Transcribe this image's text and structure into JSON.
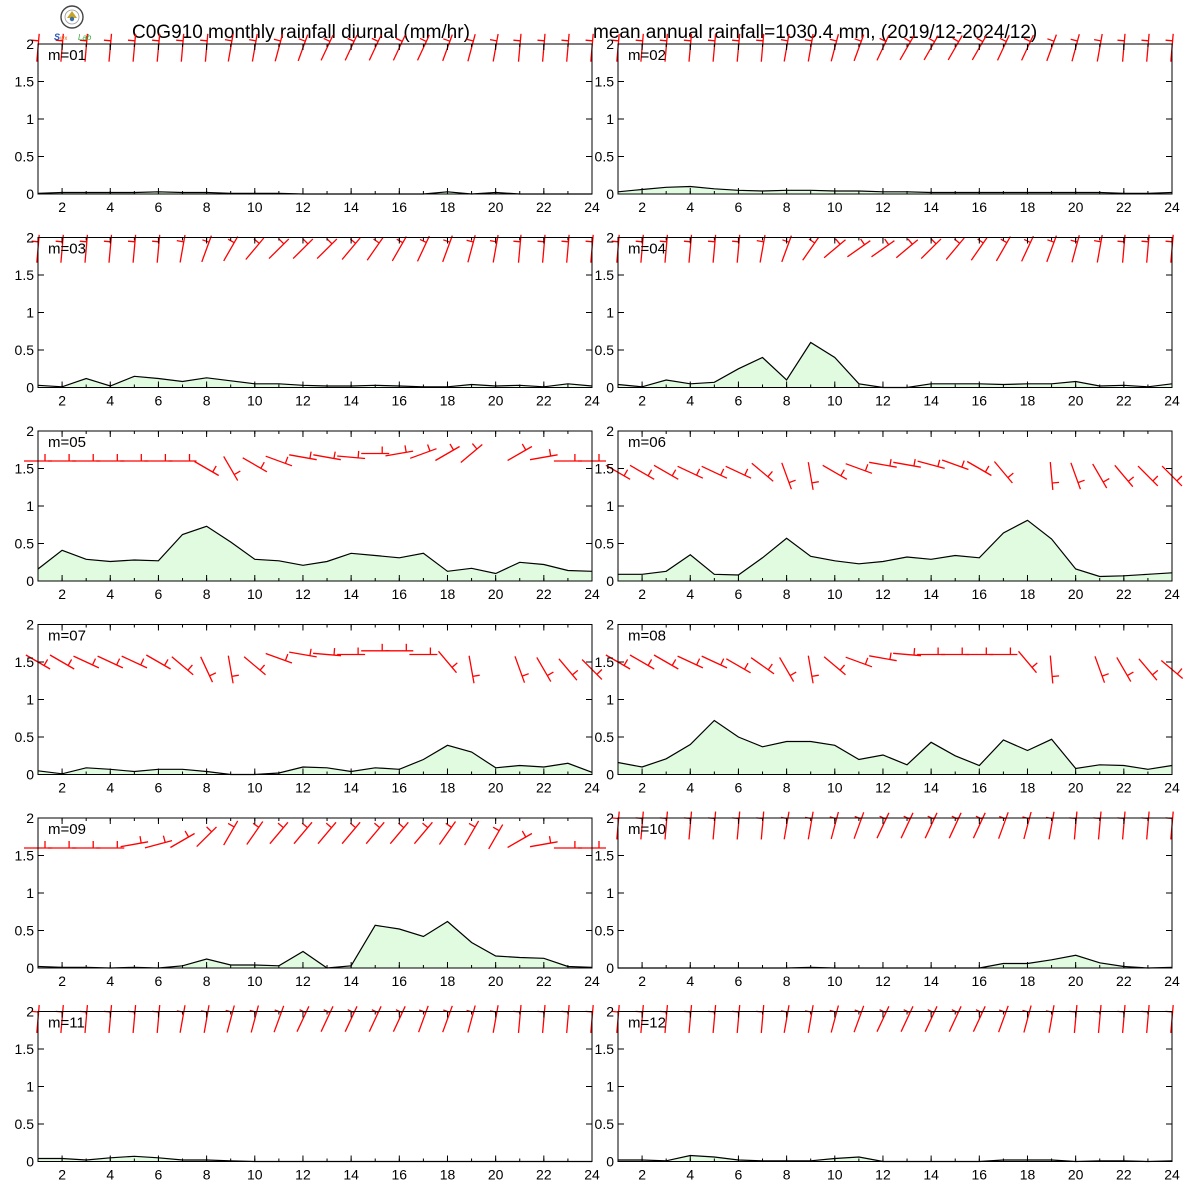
{
  "header": {
    "title_left": "C0G910 monthly rainfall diurnal (mm/hr)",
    "title_right": "mean annual rainfall=1030.4 mm, (2019/12-2024/12)",
    "logo_text": "Lab"
  },
  "colors": {
    "fill": "#e0fbe0",
    "line": "#000000",
    "barb": "#ff0000"
  },
  "chart_data": {
    "type": "area",
    "layout": "6x2 small multiples",
    "x": [
      1,
      2,
      3,
      4,
      5,
      6,
      7,
      8,
      9,
      10,
      11,
      12,
      13,
      14,
      15,
      16,
      17,
      18,
      19,
      20,
      21,
      22,
      23,
      24
    ],
    "xticks": [
      2,
      4,
      6,
      8,
      10,
      12,
      14,
      16,
      18,
      20,
      22,
      24
    ],
    "yticks": [
      0,
      0.5,
      1,
      1.5,
      2
    ],
    "xlim": [
      1,
      24
    ],
    "ylim": [
      0,
      2
    ],
    "grid": false,
    "panels": [
      {
        "label": "m=01",
        "rain": [
          0.01,
          0.02,
          0.02,
          0.02,
          0.02,
          0.03,
          0.02,
          0.02,
          0.01,
          0.01,
          0.01,
          0,
          0,
          0,
          0,
          0,
          0,
          0.03,
          0,
          0.02,
          0,
          0,
          0,
          0
        ],
        "wind": {
          "level": [
            1.95,
            1.95,
            1.95,
            1.95,
            1.95,
            1.95,
            1.95,
            1.95,
            1.95,
            1.95,
            1.95,
            1.95,
            1.95,
            1.95,
            1.95,
            1.95,
            1.95,
            1.95,
            1.95,
            1.95,
            1.95,
            1.95,
            1.95,
            1.95
          ],
          "dir": [
            5,
            5,
            5,
            5,
            5,
            5,
            5,
            5,
            10,
            10,
            15,
            20,
            25,
            25,
            25,
            25,
            25,
            20,
            15,
            10,
            5,
            5,
            5,
            5
          ]
        }
      },
      {
        "label": "m=02",
        "rain": [
          0.03,
          0.06,
          0.09,
          0.1,
          0.07,
          0.05,
          0.04,
          0.05,
          0.05,
          0.04,
          0.04,
          0.03,
          0.03,
          0.02,
          0.02,
          0.02,
          0.02,
          0.02,
          0.02,
          0.02,
          0.02,
          0.01,
          0.01,
          0.02
        ],
        "wind": {
          "level": [
            1.95,
            1.95,
            1.95,
            1.95,
            1.95,
            1.95,
            1.95,
            1.95,
            1.95,
            1.95,
            1.95,
            1.95,
            1.95,
            1.95,
            1.95,
            1.95,
            1.95,
            1.95,
            1.95,
            1.95,
            1.95,
            1.95,
            1.95,
            1.95
          ],
          "dir": [
            5,
            5,
            5,
            5,
            5,
            5,
            5,
            10,
            10,
            15,
            20,
            25,
            30,
            30,
            30,
            30,
            25,
            25,
            20,
            15,
            10,
            5,
            5,
            5
          ]
        }
      },
      {
        "label": "m=03",
        "rain": [
          0.03,
          0.01,
          0.12,
          0.02,
          0.15,
          0.12,
          0.08,
          0.13,
          0.09,
          0.05,
          0.05,
          0.03,
          0.02,
          0.02,
          0.03,
          0.02,
          0.01,
          0.01,
          0.04,
          0.02,
          0.03,
          0.01,
          0.05,
          0.02
        ],
        "wind": {
          "level": [
            1.85,
            1.85,
            1.85,
            1.85,
            1.85,
            1.85,
            1.85,
            1.85,
            1.85,
            1.85,
            1.85,
            1.85,
            1.85,
            1.85,
            1.85,
            1.85,
            1.85,
            1.85,
            1.85,
            1.85,
            1.85,
            1.85,
            1.85,
            1.85
          ],
          "dir": [
            5,
            5,
            5,
            5,
            5,
            5,
            10,
            20,
            30,
            40,
            45,
            45,
            45,
            40,
            35,
            30,
            25,
            20,
            15,
            10,
            5,
            5,
            5,
            5
          ]
        }
      },
      {
        "label": "m=04",
        "rain": [
          0.04,
          0.01,
          0.1,
          0.05,
          0.07,
          0.25,
          0.4,
          0.1,
          0.6,
          0.4,
          0.05,
          0,
          0,
          0.05,
          0.05,
          0.05,
          0.04,
          0.05,
          0.05,
          0.08,
          0.02,
          0.03,
          0.01,
          0.05
        ],
        "wind": {
          "level": [
            1.85,
            1.85,
            1.85,
            1.85,
            1.85,
            1.85,
            1.85,
            1.85,
            1.85,
            1.85,
            1.85,
            1.85,
            1.85,
            1.85,
            1.85,
            1.85,
            1.85,
            1.85,
            1.85,
            1.85,
            1.85,
            1.85,
            1.85,
            1.85
          ],
          "dir": [
            5,
            5,
            5,
            5,
            5,
            5,
            10,
            20,
            35,
            50,
            55,
            55,
            50,
            45,
            40,
            35,
            30,
            25,
            20,
            15,
            10,
            5,
            5,
            5
          ]
        }
      },
      {
        "label": "m=05",
        "rain": [
          0.16,
          0.41,
          0.29,
          0.26,
          0.28,
          0.27,
          0.62,
          0.73,
          0.52,
          0.29,
          0.27,
          0.21,
          0.26,
          0.37,
          0.34,
          0.31,
          0.37,
          0.13,
          0.17,
          0.1,
          0.25,
          0.22,
          0.14,
          0.13
        ],
        "wind": {
          "level": [
            1.6,
            1.6,
            1.6,
            1.6,
            1.6,
            1.6,
            1.6,
            1.5,
            1.5,
            1.55,
            1.6,
            1.65,
            1.65,
            1.65,
            1.7,
            1.7,
            1.7,
            1.7,
            1.7,
            null,
            1.7,
            1.65,
            1.6,
            1.6
          ],
          "dir": [
            90,
            90,
            90,
            90,
            90,
            90,
            90,
            120,
            150,
            120,
            110,
            100,
            100,
            95,
            90,
            80,
            70,
            60,
            50,
            null,
            60,
            80,
            90,
            90
          ]
        }
      },
      {
        "label": "m=06",
        "rain": [
          0.09,
          0.09,
          0.13,
          0.35,
          0.09,
          0.08,
          0.31,
          0.57,
          0.33,
          0.27,
          0.23,
          0.26,
          0.32,
          0.29,
          0.34,
          0.31,
          0.64,
          0.81,
          0.56,
          0.16,
          0.06,
          0.07,
          0.09,
          0.11
        ],
        "wind": {
          "level": [
            1.45,
            1.45,
            1.45,
            1.45,
            1.45,
            1.45,
            1.45,
            1.4,
            1.4,
            1.45,
            1.5,
            1.55,
            1.55,
            1.55,
            1.55,
            1.5,
            1.45,
            null,
            1.4,
            1.4,
            1.4,
            1.4,
            1.4,
            1.4
          ],
          "dir": [
            120,
            120,
            120,
            115,
            115,
            115,
            130,
            160,
            170,
            120,
            110,
            100,
            100,
            105,
            110,
            120,
            140,
            null,
            175,
            160,
            150,
            140,
            135,
            135
          ]
        }
      },
      {
        "label": "m=07",
        "rain": [
          0.05,
          0.01,
          0.09,
          0.07,
          0.04,
          0.07,
          0.07,
          0.04,
          0,
          0,
          0.02,
          0.1,
          0.09,
          0.04,
          0.09,
          0.07,
          0.2,
          0.39,
          0.3,
          0.09,
          0.12,
          0.1,
          0.15,
          0.03
        ],
        "wind": {
          "level": [
            1.5,
            1.5,
            1.5,
            1.5,
            1.5,
            1.5,
            1.45,
            1.4,
            1.4,
            1.45,
            1.55,
            1.6,
            1.6,
            1.6,
            1.65,
            1.65,
            1.6,
            1.5,
            1.4,
            null,
            1.4,
            1.4,
            1.4,
            1.4
          ],
          "dir": [
            120,
            120,
            115,
            115,
            115,
            120,
            130,
            155,
            170,
            130,
            110,
            100,
            95,
            90,
            90,
            90,
            90,
            140,
            170,
            null,
            160,
            150,
            140,
            135
          ]
        }
      },
      {
        "label": "m=08",
        "rain": [
          0.16,
          0.1,
          0.21,
          0.4,
          0.72,
          0.5,
          0.37,
          0.44,
          0.44,
          0.39,
          0.2,
          0.26,
          0.13,
          0.43,
          0.25,
          0.12,
          0.46,
          0.32,
          0.47,
          0.08,
          0.13,
          0.12,
          0.07,
          0.12
        ],
        "wind": {
          "level": [
            1.5,
            1.5,
            1.5,
            1.5,
            1.5,
            1.45,
            1.45,
            1.4,
            1.4,
            1.45,
            1.5,
            1.55,
            1.6,
            1.6,
            1.6,
            1.6,
            1.6,
            1.5,
            1.4,
            null,
            1.4,
            1.4,
            1.4,
            1.4
          ],
          "dir": [
            120,
            120,
            120,
            115,
            115,
            120,
            125,
            150,
            170,
            130,
            110,
            100,
            95,
            90,
            90,
            90,
            90,
            140,
            175,
            null,
            160,
            150,
            140,
            130
          ]
        }
      },
      {
        "label": "m=09",
        "rain": [
          0.02,
          0.01,
          0.01,
          0,
          0.01,
          0,
          0.03,
          0.12,
          0.04,
          0.04,
          0.03,
          0.22,
          0,
          0.03,
          0.57,
          0.52,
          0.42,
          0.62,
          0.34,
          0.16,
          0.14,
          0.13,
          0.02,
          0.01
        ],
        "wind": {
          "level": [
            1.6,
            1.6,
            1.6,
            1.6,
            1.65,
            1.65,
            1.7,
            1.75,
            1.8,
            1.8,
            1.8,
            1.8,
            1.8,
            1.8,
            1.8,
            1.8,
            1.8,
            1.8,
            1.8,
            1.75,
            1.7,
            1.65,
            1.6,
            1.6
          ],
          "dir": [
            90,
            90,
            90,
            90,
            80,
            75,
            60,
            45,
            30,
            35,
            40,
            40,
            40,
            40,
            40,
            40,
            40,
            35,
            30,
            30,
            60,
            80,
            90,
            90
          ]
        }
      },
      {
        "label": "m=10",
        "rain": [
          0,
          0,
          0,
          0,
          0,
          0,
          0,
          0,
          0.01,
          0,
          0,
          0,
          0,
          0,
          0,
          0,
          0.06,
          0.06,
          0.11,
          0.17,
          0.07,
          0.02,
          0,
          0.01
        ],
        "wind": {
          "level": [
            1.9,
            1.9,
            1.9,
            1.9,
            1.9,
            1.9,
            1.9,
            1.9,
            1.9,
            1.9,
            1.9,
            1.9,
            1.9,
            1.9,
            1.9,
            1.9,
            1.9,
            1.9,
            1.9,
            1.9,
            1.9,
            1.9,
            1.9,
            1.9
          ],
          "dir": [
            5,
            5,
            5,
            5,
            5,
            5,
            5,
            10,
            10,
            15,
            20,
            25,
            25,
            25,
            25,
            25,
            20,
            15,
            10,
            5,
            5,
            5,
            5,
            5
          ]
        }
      },
      {
        "label": "m=11",
        "rain": [
          0.04,
          0.04,
          0.02,
          0.05,
          0.07,
          0.05,
          0.02,
          0.02,
          0.01,
          0,
          0,
          0,
          0,
          0,
          0,
          0,
          0,
          0,
          0,
          0,
          0,
          0,
          0,
          0
        ],
        "wind": {
          "level": [
            1.9,
            1.9,
            1.9,
            1.9,
            1.9,
            1.9,
            1.9,
            1.9,
            1.9,
            1.9,
            1.9,
            1.9,
            1.9,
            1.9,
            1.9,
            1.9,
            1.9,
            1.9,
            1.9,
            1.9,
            1.9,
            1.9,
            1.9,
            1.9
          ],
          "dir": [
            5,
            5,
            5,
            5,
            5,
            5,
            10,
            10,
            15,
            15,
            20,
            25,
            25,
            25,
            25,
            25,
            20,
            20,
            15,
            10,
            5,
            5,
            5,
            5
          ]
        }
      },
      {
        "label": "m=12",
        "rain": [
          0.02,
          0.02,
          0.01,
          0.08,
          0.06,
          0.02,
          0.01,
          0.01,
          0.01,
          0.04,
          0.06,
          0,
          0,
          0,
          0,
          0,
          0.02,
          0.02,
          0.02,
          0,
          0.01,
          0.01,
          0,
          0.01
        ],
        "wind": {
          "level": [
            1.9,
            1.9,
            1.9,
            1.9,
            1.9,
            1.9,
            1.9,
            1.9,
            1.9,
            1.9,
            1.9,
            1.9,
            1.9,
            1.9,
            1.9,
            1.9,
            1.9,
            1.9,
            1.9,
            1.9,
            1.9,
            1.9,
            1.9,
            1.9
          ],
          "dir": [
            5,
            5,
            5,
            5,
            5,
            5,
            5,
            10,
            10,
            15,
            20,
            25,
            25,
            25,
            25,
            25,
            20,
            15,
            10,
            5,
            5,
            5,
            5,
            5
          ]
        }
      }
    ]
  }
}
